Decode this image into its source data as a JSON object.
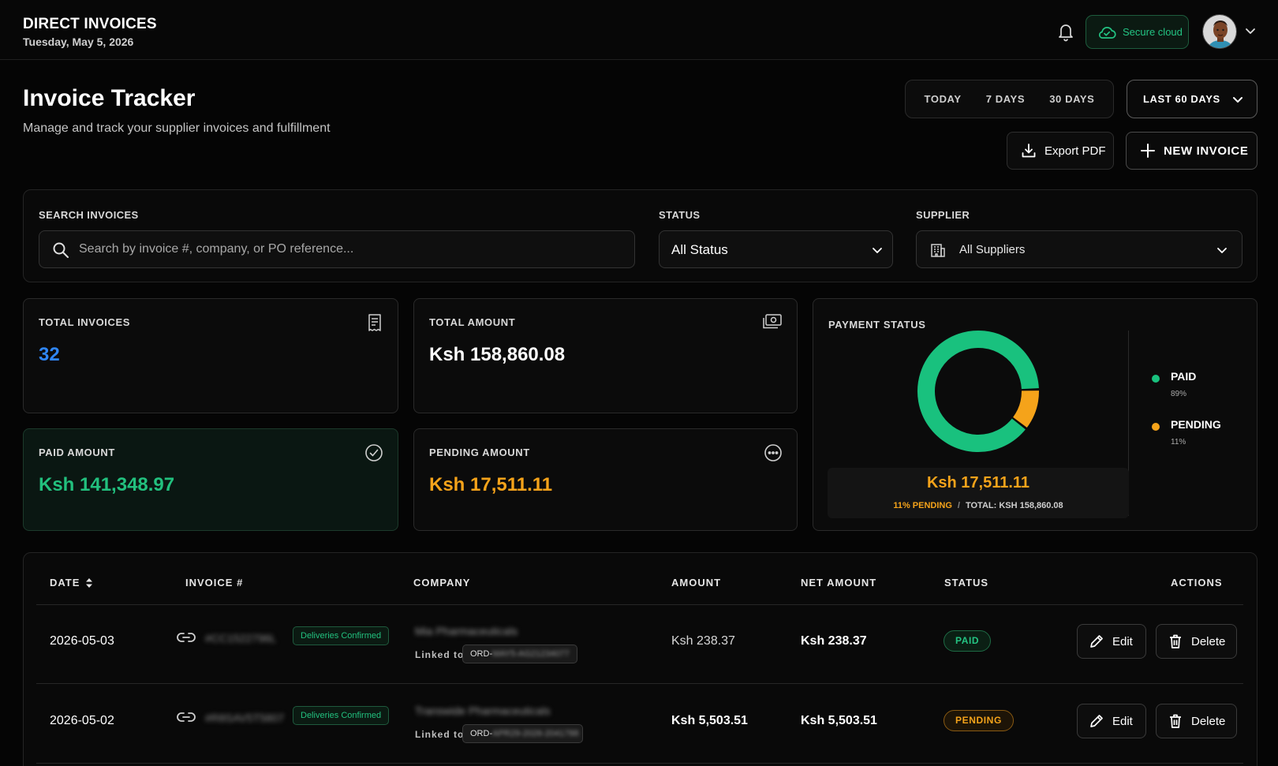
{
  "header": {
    "title": "DIRECT INVOICES",
    "date": "Tuesday, May 5, 2026",
    "secure_label": "Secure cloud",
    "bell_icon": "bell-icon",
    "avatar_icon": "avatar"
  },
  "page": {
    "title": "Invoice Tracker",
    "subtitle": "Manage and track your supplier invoices and fulfillment"
  },
  "date_range": {
    "options": [
      "TODAY",
      "7 DAYS",
      "30 DAYS"
    ],
    "selected": "LAST 60 DAYS"
  },
  "actions": {
    "export_label": "Export PDF",
    "new_label": "NEW INVOICE"
  },
  "filters": {
    "search_label": "SEARCH INVOICES",
    "search_placeholder": "Search by invoice #, company, or PO reference...",
    "status_label": "STATUS",
    "status_value": "All Status",
    "supplier_label": "SUPPLIER",
    "supplier_value": "All Suppliers"
  },
  "stats": {
    "total_invoices": {
      "label": "TOTAL INVOICES",
      "value": "32"
    },
    "total_amount": {
      "label": "TOTAL AMOUNT",
      "value": "Ksh 158,860.08"
    },
    "paid_amount": {
      "label": "PAID AMOUNT",
      "value": "Ksh 141,348.97"
    },
    "pending_amount": {
      "label": "PENDING AMOUNT",
      "value": "Ksh 17,511.11"
    }
  },
  "payment_status": {
    "label": "PAYMENT STATUS",
    "center_amount": "Ksh 17,511.11",
    "pending_text": "11% PENDING",
    "separator": "/",
    "total_text": "TOTAL: KSH 158,860.08",
    "legend": [
      {
        "name": "PAID",
        "pct": "89%",
        "color": "#19c17e"
      },
      {
        "name": "PENDING",
        "pct": "11%",
        "color": "#f5a31a"
      }
    ],
    "paid_fraction": 0.89,
    "pending_fraction": 0.11
  },
  "table": {
    "headers": [
      "DATE",
      "INVOICE #",
      "COMPANY",
      "AMOUNT",
      "NET AMOUNT",
      "STATUS",
      "ACTIONS"
    ],
    "rows": [
      {
        "date": "2026-05-03",
        "invoice": "#CC1522796L",
        "delivery_badge": "Deliveries Confirmed",
        "company": "Mia Pharmaceuticals",
        "linked_label": "Linked to",
        "order_prefix": "ORD-",
        "order_rest": "MAY5-AG21234077",
        "amount": "Ksh 238.37",
        "net_amount": "Ksh 238.37",
        "status": "PAID",
        "edit_label": "Edit",
        "delete_label": "Delete"
      },
      {
        "date": "2026-05-02",
        "invoice": "#R8SAV5T5807",
        "delivery_badge": "Deliveries Confirmed",
        "company": "Transwide Pharmaceuticals",
        "linked_label": "Linked to",
        "order_prefix": "ORD-",
        "order_rest": "APR29-2026-2041788",
        "amount": "Ksh 5,503.51",
        "net_amount": "Ksh 5,503.51",
        "status": "PENDING",
        "edit_label": "Edit",
        "delete_label": "Delete"
      }
    ]
  }
}
